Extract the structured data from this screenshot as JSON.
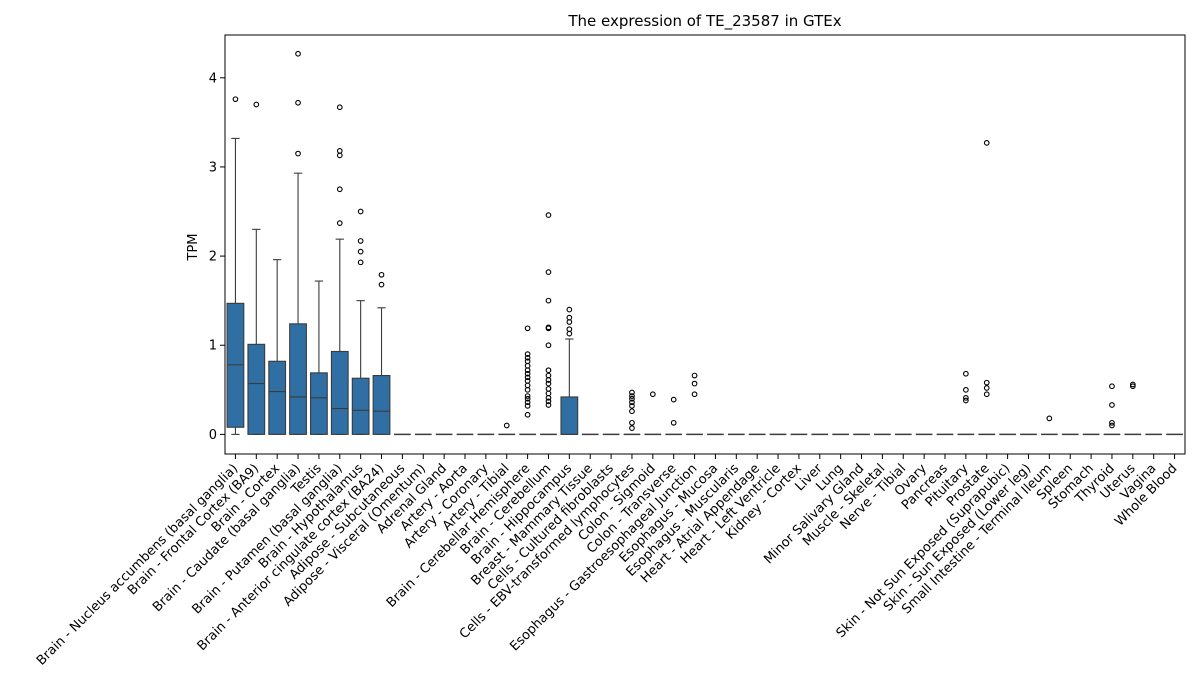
{
  "chart_data": {
    "type": "box",
    "title": "The expression of TE_23587 in GTEx",
    "xlabel": "",
    "ylabel": "TPM",
    "ylim": [
      -0.22,
      4.48
    ],
    "yticks": [
      0,
      1,
      2,
      3,
      4
    ],
    "grid": false,
    "box_color": "#2f6fa3",
    "line_color": "#3b3b3b",
    "categories": [
      "Brain - Nucleus accumbens (basal ganglia)",
      "Brain - Frontal Cortex (BA9)",
      "Brain - Cortex",
      "Brain - Caudate (basal ganglia)",
      "Testis",
      "Brain - Putamen (basal ganglia)",
      "Brain - Hypothalamus",
      "Brain - Anterior cingulate cortex (BA24)",
      "Adipose - Subcutaneous",
      "Adipose - Visceral (Omentum)",
      "Adrenal Gland",
      "Artery - Aorta",
      "Artery - Coronary",
      "Artery - Tibial",
      "Brain - Cerebellar Hemisphere",
      "Brain - Cerebellum",
      "Brain - Hippocampus",
      "Breast - Mammary Tissue",
      "Cells - Cultured fibroblasts",
      "Cells - EBV-transformed lymphocytes",
      "Colon - Sigmoid",
      "Colon - Transverse",
      "Esophagus - Gastroesophageal Junction",
      "Esophagus - Mucosa",
      "Esophagus - Muscularis",
      "Heart - Atrial Appendage",
      "Heart - Left Ventricle",
      "Kidney - Cortex",
      "Liver",
      "Lung",
      "Minor Salivary Gland",
      "Muscle - Skeletal",
      "Nerve - Tibial",
      "Ovary",
      "Pancreas",
      "Pituitary",
      "Prostate",
      "Skin - Not Sun Exposed (Suprapubic)",
      "Skin - Sun Exposed (Lower leg)",
      "Small Intestine - Terminal Ileum",
      "Spleen",
      "Stomach",
      "Thyroid",
      "Uterus",
      "Vagina",
      "Whole Blood"
    ],
    "boxes": [
      {
        "q1": 0.08,
        "median": 0.78,
        "q3": 1.47,
        "whislo": 0.0,
        "whishi": 3.32,
        "fliers": [
          3.76
        ]
      },
      {
        "q1": 0.0,
        "median": 0.57,
        "q3": 1.01,
        "whislo": 0.0,
        "whishi": 2.3,
        "fliers": [
          3.7
        ]
      },
      {
        "q1": 0.0,
        "median": 0.48,
        "q3": 0.82,
        "whislo": 0.0,
        "whishi": 1.96,
        "fliers": []
      },
      {
        "q1": 0.0,
        "median": 0.42,
        "q3": 1.24,
        "whislo": 0.0,
        "whishi": 2.93,
        "fliers": [
          3.15,
          3.72,
          4.27
        ]
      },
      {
        "q1": 0.0,
        "median": 0.41,
        "q3": 0.69,
        "whislo": 0.0,
        "whishi": 1.72,
        "fliers": []
      },
      {
        "q1": 0.0,
        "median": 0.29,
        "q3": 0.93,
        "whislo": 0.0,
        "whishi": 2.19,
        "fliers": [
          2.37,
          2.75,
          3.13,
          3.18,
          3.67
        ]
      },
      {
        "q1": 0.0,
        "median": 0.27,
        "q3": 0.63,
        "whislo": 0.0,
        "whishi": 1.5,
        "fliers": [
          1.93,
          2.05,
          2.17,
          2.5
        ]
      },
      {
        "q1": 0.0,
        "median": 0.26,
        "q3": 0.66,
        "whislo": 0.0,
        "whishi": 1.42,
        "fliers": [
          1.68,
          1.79
        ]
      },
      {
        "q1": 0.0,
        "median": 0.0,
        "q3": 0.0,
        "whislo": 0.0,
        "whishi": 0.0,
        "fliers": []
      },
      {
        "q1": 0.0,
        "median": 0.0,
        "q3": 0.0,
        "whislo": 0.0,
        "whishi": 0.0,
        "fliers": []
      },
      {
        "q1": 0.0,
        "median": 0.0,
        "q3": 0.0,
        "whislo": 0.0,
        "whishi": 0.0,
        "fliers": []
      },
      {
        "q1": 0.0,
        "median": 0.0,
        "q3": 0.0,
        "whislo": 0.0,
        "whishi": 0.0,
        "fliers": []
      },
      {
        "q1": 0.0,
        "median": 0.0,
        "q3": 0.0,
        "whislo": 0.0,
        "whishi": 0.0,
        "fliers": []
      },
      {
        "q1": 0.0,
        "median": 0.0,
        "q3": 0.0,
        "whislo": 0.0,
        "whishi": 0.0,
        "fliers": [
          0.1
        ]
      },
      {
        "q1": 0.0,
        "median": 0.0,
        "q3": 0.0,
        "whislo": 0.0,
        "whishi": 0.0,
        "fliers": [
          0.22,
          0.32,
          0.36,
          0.4,
          0.43,
          0.5,
          0.55,
          0.6,
          0.64,
          0.68,
          0.72,
          0.77,
          0.82,
          0.86,
          0.9,
          1.19
        ]
      },
      {
        "q1": 0.0,
        "median": 0.0,
        "q3": 0.0,
        "whislo": 0.0,
        "whishi": 0.0,
        "fliers": [
          0.33,
          0.37,
          0.41,
          0.46,
          0.51,
          0.57,
          0.61,
          0.66,
          0.72,
          1.0,
          1.19,
          1.2,
          1.5,
          1.82,
          2.46
        ]
      },
      {
        "q1": 0.0,
        "median": 0.0,
        "q3": 0.42,
        "whislo": 0.0,
        "whishi": 1.07,
        "fliers": [
          1.13,
          1.18,
          1.26,
          1.31,
          1.4
        ]
      },
      {
        "q1": 0.0,
        "median": 0.0,
        "q3": 0.0,
        "whislo": 0.0,
        "whishi": 0.0,
        "fliers": []
      },
      {
        "q1": 0.0,
        "median": 0.0,
        "q3": 0.0,
        "whislo": 0.0,
        "whishi": 0.0,
        "fliers": []
      },
      {
        "q1": 0.0,
        "median": 0.0,
        "q3": 0.0,
        "whislo": 0.0,
        "whishi": 0.0,
        "fliers": [
          0.07,
          0.13,
          0.26,
          0.32,
          0.36,
          0.4,
          0.43,
          0.47
        ]
      },
      {
        "q1": 0.0,
        "median": 0.0,
        "q3": 0.0,
        "whislo": 0.0,
        "whishi": 0.0,
        "fliers": [
          0.45
        ]
      },
      {
        "q1": 0.0,
        "median": 0.0,
        "q3": 0.0,
        "whislo": 0.0,
        "whishi": 0.0,
        "fliers": [
          0.13,
          0.39
        ]
      },
      {
        "q1": 0.0,
        "median": 0.0,
        "q3": 0.0,
        "whislo": 0.0,
        "whishi": 0.0,
        "fliers": [
          0.45,
          0.57,
          0.66
        ]
      },
      {
        "q1": 0.0,
        "median": 0.0,
        "q3": 0.0,
        "whislo": 0.0,
        "whishi": 0.0,
        "fliers": []
      },
      {
        "q1": 0.0,
        "median": 0.0,
        "q3": 0.0,
        "whislo": 0.0,
        "whishi": 0.0,
        "fliers": []
      },
      {
        "q1": 0.0,
        "median": 0.0,
        "q3": 0.0,
        "whislo": 0.0,
        "whishi": 0.0,
        "fliers": []
      },
      {
        "q1": 0.0,
        "median": 0.0,
        "q3": 0.0,
        "whislo": 0.0,
        "whishi": 0.0,
        "fliers": []
      },
      {
        "q1": 0.0,
        "median": 0.0,
        "q3": 0.0,
        "whislo": 0.0,
        "whishi": 0.0,
        "fliers": []
      },
      {
        "q1": 0.0,
        "median": 0.0,
        "q3": 0.0,
        "whislo": 0.0,
        "whishi": 0.0,
        "fliers": []
      },
      {
        "q1": 0.0,
        "median": 0.0,
        "q3": 0.0,
        "whislo": 0.0,
        "whishi": 0.0,
        "fliers": []
      },
      {
        "q1": 0.0,
        "median": 0.0,
        "q3": 0.0,
        "whislo": 0.0,
        "whishi": 0.0,
        "fliers": []
      },
      {
        "q1": 0.0,
        "median": 0.0,
        "q3": 0.0,
        "whislo": 0.0,
        "whishi": 0.0,
        "fliers": []
      },
      {
        "q1": 0.0,
        "median": 0.0,
        "q3": 0.0,
        "whislo": 0.0,
        "whishi": 0.0,
        "fliers": []
      },
      {
        "q1": 0.0,
        "median": 0.0,
        "q3": 0.0,
        "whislo": 0.0,
        "whishi": 0.0,
        "fliers": []
      },
      {
        "q1": 0.0,
        "median": 0.0,
        "q3": 0.0,
        "whislo": 0.0,
        "whishi": 0.0,
        "fliers": []
      },
      {
        "q1": 0.0,
        "median": 0.0,
        "q3": 0.0,
        "whislo": 0.0,
        "whishi": 0.0,
        "fliers": [
          0.38,
          0.41,
          0.5,
          0.68
        ]
      },
      {
        "q1": 0.0,
        "median": 0.0,
        "q3": 0.0,
        "whislo": 0.0,
        "whishi": 0.0,
        "fliers": [
          0.45,
          0.52,
          0.58,
          3.27
        ]
      },
      {
        "q1": 0.0,
        "median": 0.0,
        "q3": 0.0,
        "whislo": 0.0,
        "whishi": 0.0,
        "fliers": []
      },
      {
        "q1": 0.0,
        "median": 0.0,
        "q3": 0.0,
        "whislo": 0.0,
        "whishi": 0.0,
        "fliers": []
      },
      {
        "q1": 0.0,
        "median": 0.0,
        "q3": 0.0,
        "whislo": 0.0,
        "whishi": 0.0,
        "fliers": [
          0.18
        ]
      },
      {
        "q1": 0.0,
        "median": 0.0,
        "q3": 0.0,
        "whislo": 0.0,
        "whishi": 0.0,
        "fliers": []
      },
      {
        "q1": 0.0,
        "median": 0.0,
        "q3": 0.0,
        "whislo": 0.0,
        "whishi": 0.0,
        "fliers": []
      },
      {
        "q1": 0.0,
        "median": 0.0,
        "q3": 0.0,
        "whislo": 0.0,
        "whishi": 0.0,
        "fliers": [
          0.1,
          0.13,
          0.33,
          0.54
        ]
      },
      {
        "q1": 0.0,
        "median": 0.0,
        "q3": 0.0,
        "whislo": 0.0,
        "whishi": 0.0,
        "fliers": [
          0.54,
          0.56
        ]
      },
      {
        "q1": 0.0,
        "median": 0.0,
        "q3": 0.0,
        "whislo": 0.0,
        "whishi": 0.0,
        "fliers": []
      },
      {
        "q1": 0.0,
        "median": 0.0,
        "q3": 0.0,
        "whislo": 0.0,
        "whishi": 0.0,
        "fliers": []
      }
    ]
  }
}
